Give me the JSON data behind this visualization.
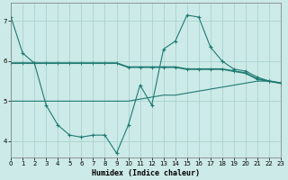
{
  "xlabel": "Humidex (Indice chaleur)",
  "xlim": [
    0,
    23
  ],
  "ylim": [
    3.6,
    7.45
  ],
  "yticks": [
    4,
    5,
    6,
    7
  ],
  "xticks": [
    0,
    1,
    2,
    3,
    4,
    5,
    6,
    7,
    8,
    9,
    10,
    11,
    12,
    13,
    14,
    15,
    16,
    17,
    18,
    19,
    20,
    21,
    22,
    23
  ],
  "background_color": "#cceae7",
  "grid_color": "#aad4d0",
  "line_color": "#1e7a72",
  "line1_x": [
    0,
    1,
    2,
    3,
    4,
    5,
    6,
    7,
    8,
    9,
    10,
    11,
    12,
    13,
    14,
    15,
    16,
    17,
    18,
    19,
    20,
    21,
    22,
    23
  ],
  "line1_y": [
    7.1,
    6.2,
    5.95,
    4.9,
    4.4,
    4.15,
    4.1,
    4.15,
    4.15,
    3.7,
    4.4,
    5.4,
    4.9,
    6.3,
    6.5,
    7.15,
    7.1,
    6.35,
    6.0,
    5.8,
    5.75,
    5.6,
    5.5,
    5.45
  ],
  "line2_x": [
    0,
    1,
    2,
    3,
    4,
    5,
    6,
    7,
    8,
    9,
    10,
    11,
    12,
    13,
    14,
    15,
    16,
    17,
    18,
    19,
    20,
    21,
    22,
    23
  ],
  "line2_y": [
    5.95,
    5.95,
    5.95,
    5.95,
    5.95,
    5.95,
    5.95,
    5.95,
    5.95,
    5.95,
    5.85,
    5.85,
    5.85,
    5.85,
    5.85,
    5.8,
    5.8,
    5.8,
    5.8,
    5.75,
    5.7,
    5.55,
    5.5,
    5.45
  ],
  "line3_x": [
    0,
    1,
    2,
    3,
    4,
    5,
    6,
    7,
    8,
    9,
    10,
    11,
    12,
    13,
    14,
    15,
    16,
    17,
    18,
    19,
    20,
    21,
    22,
    23
  ],
  "line3_y": [
    5.0,
    5.0,
    5.0,
    5.0,
    5.0,
    5.0,
    5.0,
    5.0,
    5.0,
    5.0,
    5.0,
    5.05,
    5.1,
    5.15,
    5.15,
    5.2,
    5.25,
    5.3,
    5.35,
    5.4,
    5.45,
    5.5,
    5.5,
    5.45
  ]
}
